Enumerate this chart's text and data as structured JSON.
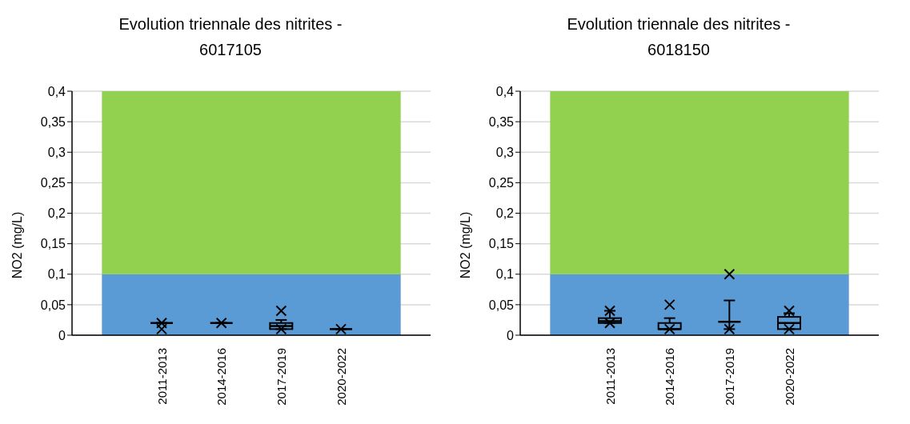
{
  "chart_data": [
    {
      "type": "box",
      "title": "Evolution triennale des nitrites - 6017105",
      "ylabel": "NO2 (mg/L)",
      "categories": [
        null,
        "2011-2013",
        "2014-2016",
        "2017-2019",
        "2020-2022",
        null
      ],
      "boxes": [
        null,
        {
          "low": 0.02,
          "q1": 0.02,
          "median": 0.02,
          "q3": 0.02,
          "high": 0.02,
          "outliers": [
            0.02,
            0.01
          ]
        },
        {
          "low": 0.02,
          "q1": 0.02,
          "median": 0.02,
          "q3": 0.02,
          "high": 0.02,
          "outliers": [
            0.02
          ]
        },
        {
          "low": 0.01,
          "q1": 0.01,
          "median": 0.015,
          "q3": 0.02,
          "high": 0.025,
          "outliers": [
            0.04,
            0.01
          ]
        },
        {
          "low": 0.01,
          "q1": 0.01,
          "median": 0.01,
          "q3": 0.01,
          "high": 0.01,
          "outliers": [
            0.01
          ]
        },
        null
      ],
      "ylim": [
        0,
        0.4
      ],
      "yticks": [
        0,
        {
          "value": 0.05,
          "label": "0,05"
        },
        {
          "value": 0.1,
          "label": "0,1"
        },
        {
          "value": 0.15,
          "label": "0,15"
        },
        {
          "value": 0.2,
          "label": "0,2"
        },
        {
          "value": 0.25,
          "label": "0,25"
        },
        {
          "value": 0.3,
          "label": "0,3"
        },
        {
          "value": 0.35,
          "label": "0,35"
        },
        {
          "value": 0.4,
          "label": "0,4"
        }
      ],
      "grid": "y",
      "legend": false,
      "bands": [
        {
          "axis": "y",
          "from": 0,
          "to": 0.1,
          "color": "#5b9bd5"
        },
        {
          "axis": "y",
          "from": 0.1,
          "to": 0.4,
          "color": "#92d050"
        }
      ]
    },
    {
      "type": "box",
      "title": "Evolution triennale des nitrites - 6018150",
      "ylabel": "NO2 (mg/L)",
      "categories": [
        null,
        "2011-2013",
        "2014-2016",
        "2017-2019",
        "2020-2022",
        null
      ],
      "boxes": [
        null,
        {
          "low": 0.02,
          "q1": 0.02,
          "median": 0.023,
          "q3": 0.028,
          "high": 0.04,
          "outliers": [
            0.04,
            0.02
          ]
        },
        {
          "low": 0.01,
          "q1": 0.01,
          "median": 0.01,
          "q3": 0.02,
          "high": 0.028,
          "outliers": [
            0.05,
            0.01
          ]
        },
        {
          "low": 0.01,
          "q1": 0.022,
          "median": 0.022,
          "q3": 0.022,
          "high": 0.057,
          "outliers": [
            0.1,
            0.01
          ]
        },
        {
          "low": 0.01,
          "q1": 0.01,
          "median": 0.02,
          "q3": 0.03,
          "high": 0.036,
          "outliers": [
            0.04,
            0.01
          ]
        },
        null
      ],
      "ylim": [
        0,
        0.4
      ],
      "yticks": [
        0,
        {
          "value": 0.05,
          "label": "0,05"
        },
        {
          "value": 0.1,
          "label": "0,1"
        },
        {
          "value": 0.15,
          "label": "0,15"
        },
        {
          "value": 0.2,
          "label": "0,2"
        },
        {
          "value": 0.25,
          "label": "0,25"
        },
        {
          "value": 0.3,
          "label": "0,3"
        },
        {
          "value": 0.35,
          "label": "0,35"
        },
        {
          "value": 0.4,
          "label": "0,4"
        }
      ],
      "grid": "y",
      "legend": false,
      "bands": [
        {
          "axis": "y",
          "from": 0,
          "to": 0.1,
          "color": "#5b9bd5"
        },
        {
          "axis": "y",
          "from": 0.1,
          "to": 0.4,
          "color": "#92d050"
        }
      ]
    }
  ]
}
